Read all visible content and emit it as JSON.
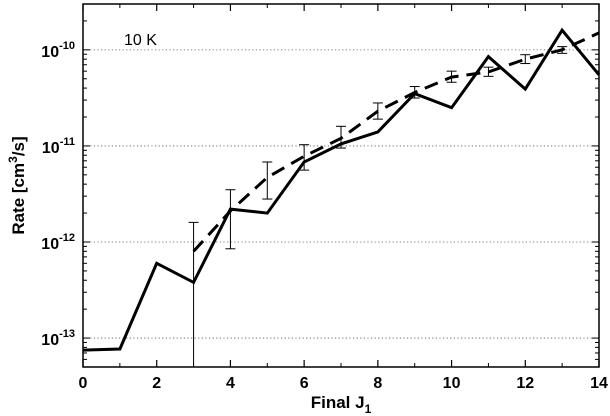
{
  "chart_data": {
    "type": "line",
    "annotation": "10 K",
    "xlabel": "Final J",
    "xlabel_subscript": "1",
    "ylabel_parts": {
      "pre": "Rate [cm",
      "sup": "3",
      "post": "/s]"
    },
    "xlim": [
      0,
      14
    ],
    "ylim": [
      5e-14,
      3e-10
    ],
    "y_scale": "log",
    "x_ticks": [
      0,
      2,
      4,
      6,
      8,
      10,
      12,
      14
    ],
    "y_ticks": [
      {
        "value": 1e-13,
        "base": "10",
        "exp": "-13"
      },
      {
        "value": 1e-12,
        "base": "10",
        "exp": "-12"
      },
      {
        "value": 1e-11,
        "base": "10",
        "exp": "-11"
      },
      {
        "value": 1e-10,
        "base": "10",
        "exp": "-10"
      }
    ],
    "grid": "horizontal dotted at major y ticks",
    "series": [
      {
        "style": "solid",
        "x": [
          0,
          1,
          2,
          3,
          4,
          5,
          6,
          7,
          8,
          9,
          10,
          11,
          12,
          13,
          14
        ],
        "y": [
          7.5e-14,
          7.7e-14,
          6e-13,
          3.8e-13,
          2.2e-12,
          2e-12,
          6.8e-12,
          1.05e-11,
          1.4e-11,
          3.5e-11,
          2.5e-11,
          8.5e-11,
          3.9e-11,
          1.6e-10,
          5.5e-11
        ]
      },
      {
        "style": "dashed",
        "x": [
          3,
          4,
          5,
          6,
          7,
          8,
          9,
          10,
          11,
          12,
          13,
          14
        ],
        "y": [
          8e-13,
          2.1e-12,
          4.7e-12,
          7.8e-12,
          1.2e-11,
          2.3e-11,
          3.6e-11,
          5.2e-11,
          5.9e-11,
          8e-11,
          1e-10,
          1.5e-10
        ]
      }
    ],
    "error_bars": [
      {
        "x": 3,
        "low": 5e-14,
        "high": 1.6e-12
      },
      {
        "x": 4,
        "low": 8.5e-13,
        "high": 3.5e-12
      },
      {
        "x": 5,
        "low": 2.8e-12,
        "high": 6.8e-12
      },
      {
        "x": 6,
        "low": 5.6e-12,
        "high": 1.03e-11
      },
      {
        "x": 7,
        "low": 9.5e-12,
        "high": 1.6e-11
      },
      {
        "x": 8,
        "low": 1.9e-11,
        "high": 2.8e-11
      },
      {
        "x": 9,
        "low": 3.15e-11,
        "high": 4.15e-11
      },
      {
        "x": 10,
        "low": 4.6e-11,
        "high": 6e-11
      },
      {
        "x": 11,
        "low": 5.3e-11,
        "high": 6.6e-11
      },
      {
        "x": 12,
        "low": 7.2e-11,
        "high": 8.9e-11
      },
      {
        "x": 13,
        "low": 9.2e-11,
        "high": 1.08e-10
      }
    ]
  }
}
